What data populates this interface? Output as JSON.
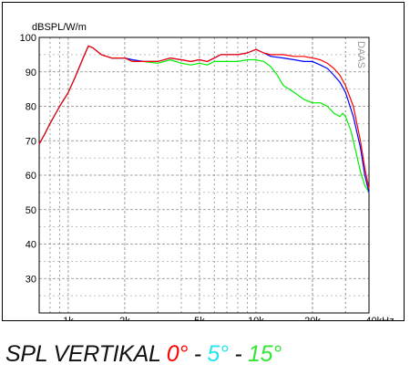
{
  "chart_data": {
    "type": "line",
    "ylabel": "dBSPL/W/m",
    "watermark": "DAAS",
    "x_scale": "log",
    "xlim": [
      700,
      40000
    ],
    "ylim": [
      20,
      100
    ],
    "grid": true,
    "y_ticks": [
      30,
      40,
      50,
      60,
      70,
      80,
      90,
      100
    ],
    "y_tick_labels": [
      "30",
      "40",
      "50",
      "60",
      "70",
      "80",
      "90",
      "100"
    ],
    "x_ticks": [
      1000,
      2000,
      5000,
      10000,
      20000,
      40000
    ],
    "x_tick_labels": [
      "1k",
      "2k",
      "5k",
      "10k",
      "20k",
      "40kHz"
    ],
    "series": [
      {
        "name": "0°",
        "color": "#ff0000",
        "points": [
          [
            700,
            69
          ],
          [
            750,
            72
          ],
          [
            800,
            75
          ],
          [
            900,
            80
          ],
          [
            1000,
            84
          ],
          [
            1100,
            89
          ],
          [
            1200,
            94
          ],
          [
            1280,
            97.5
          ],
          [
            1350,
            97
          ],
          [
            1500,
            95
          ],
          [
            1700,
            94
          ],
          [
            2000,
            94
          ],
          [
            2200,
            93
          ],
          [
            2500,
            93
          ],
          [
            3000,
            93
          ],
          [
            3500,
            94
          ],
          [
            4000,
            93.5
          ],
          [
            4500,
            93
          ],
          [
            5000,
            93.5
          ],
          [
            5500,
            93
          ],
          [
            6000,
            94
          ],
          [
            6500,
            95
          ],
          [
            7000,
            95
          ],
          [
            8000,
            95
          ],
          [
            9000,
            95.5
          ],
          [
            10000,
            96.5
          ],
          [
            11000,
            95.5
          ],
          [
            12000,
            95
          ],
          [
            14000,
            95
          ],
          [
            16000,
            94.5
          ],
          [
            18000,
            94.5
          ],
          [
            20000,
            94
          ],
          [
            22000,
            93.5
          ],
          [
            24000,
            92.5
          ],
          [
            26000,
            91
          ],
          [
            28000,
            89
          ],
          [
            30000,
            86
          ],
          [
            33000,
            80
          ],
          [
            36000,
            70
          ],
          [
            38000,
            62
          ],
          [
            40000,
            56
          ]
        ]
      },
      {
        "name": "5°",
        "color": "#0000ff",
        "points": [
          [
            700,
            69
          ],
          [
            750,
            72
          ],
          [
            800,
            75
          ],
          [
            900,
            80
          ],
          [
            1000,
            84
          ],
          [
            1100,
            89
          ],
          [
            1200,
            94
          ],
          [
            1280,
            97.5
          ],
          [
            1350,
            97
          ],
          [
            1500,
            95
          ],
          [
            1700,
            94
          ],
          [
            2000,
            94
          ],
          [
            2200,
            93.5
          ],
          [
            2500,
            93
          ],
          [
            3000,
            93
          ],
          [
            3500,
            94
          ],
          [
            4000,
            93.5
          ],
          [
            4500,
            93
          ],
          [
            5000,
            93.5
          ],
          [
            5500,
            93
          ],
          [
            6000,
            94
          ],
          [
            6500,
            95
          ],
          [
            7000,
            95
          ],
          [
            8000,
            95
          ],
          [
            9000,
            95.5
          ],
          [
            10000,
            96.5
          ],
          [
            11000,
            95.5
          ],
          [
            12000,
            94.5
          ],
          [
            14000,
            94
          ],
          [
            16000,
            93.5
          ],
          [
            18000,
            93
          ],
          [
            20000,
            93
          ],
          [
            22000,
            92
          ],
          [
            24000,
            91
          ],
          [
            26000,
            89
          ],
          [
            28000,
            87
          ],
          [
            30000,
            84
          ],
          [
            33000,
            77
          ],
          [
            36000,
            68
          ],
          [
            38000,
            60
          ],
          [
            40000,
            55
          ]
        ]
      },
      {
        "name": "15°",
        "color": "#00ee00",
        "points": [
          [
            700,
            69
          ],
          [
            750,
            72
          ],
          [
            800,
            75
          ],
          [
            900,
            80
          ],
          [
            1000,
            84
          ],
          [
            1100,
            89
          ],
          [
            1200,
            94
          ],
          [
            1280,
            97.5
          ],
          [
            1350,
            97
          ],
          [
            1500,
            95
          ],
          [
            1700,
            94
          ],
          [
            2000,
            94
          ],
          [
            2200,
            93
          ],
          [
            2500,
            93
          ],
          [
            3000,
            92.5
          ],
          [
            3500,
            93.5
          ],
          [
            4000,
            92.5
          ],
          [
            4500,
            92
          ],
          [
            5000,
            92.5
          ],
          [
            5500,
            92
          ],
          [
            6000,
            93
          ],
          [
            7000,
            93
          ],
          [
            8000,
            93
          ],
          [
            9000,
            93.5
          ],
          [
            10000,
            93.5
          ],
          [
            11000,
            93
          ],
          [
            12000,
            91.5
          ],
          [
            13000,
            89
          ],
          [
            14000,
            86
          ],
          [
            15000,
            85
          ],
          [
            16000,
            84
          ],
          [
            17000,
            83
          ],
          [
            18000,
            82
          ],
          [
            20000,
            81
          ],
          [
            22000,
            81
          ],
          [
            24000,
            80
          ],
          [
            26000,
            78
          ],
          [
            28000,
            77
          ],
          [
            29000,
            78
          ],
          [
            30000,
            77
          ],
          [
            32000,
            73
          ],
          [
            34000,
            67
          ],
          [
            36000,
            61
          ],
          [
            38000,
            57
          ],
          [
            40000,
            55
          ]
        ]
      }
    ]
  },
  "caption": {
    "prefix": "SPL VERTIKAL ",
    "label_0": "0°",
    "sep_1": " - ",
    "label_5": "5°",
    "sep_2": " - ",
    "label_15": "15°"
  }
}
